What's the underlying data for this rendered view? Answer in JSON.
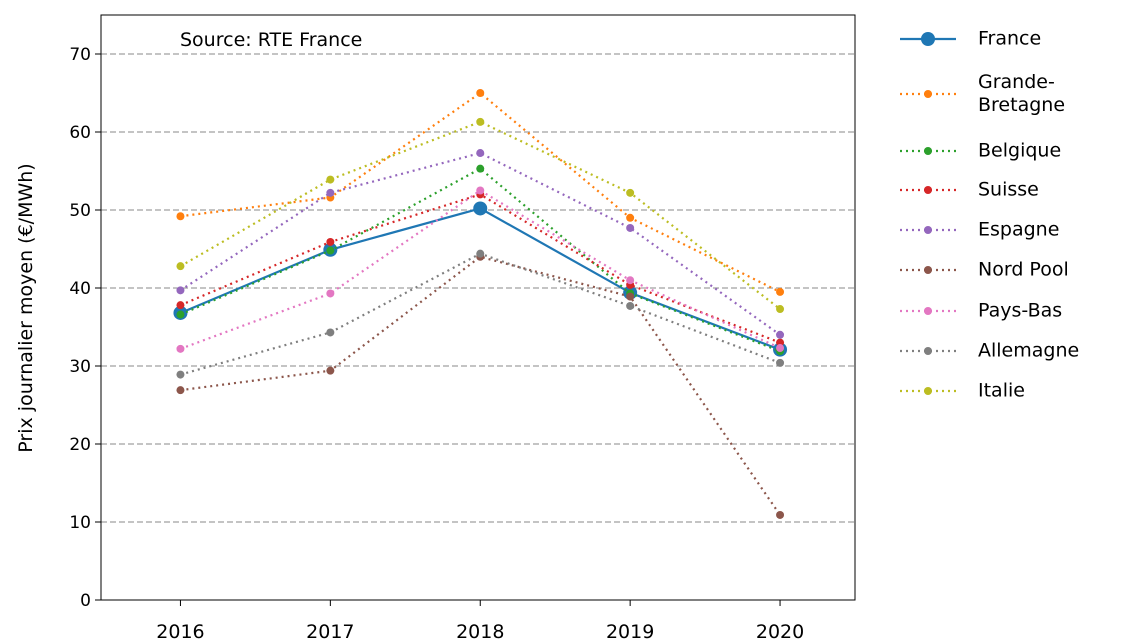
{
  "chart_data": {
    "type": "line",
    "annotation": "Source: RTE France",
    "y_label": "Prix journalier moyen (€/MWh)",
    "x": [
      2016,
      2017,
      2018,
      2019,
      2020
    ],
    "xlim": [
      2015.47,
      2020.5
    ],
    "xticks": [
      2016,
      2017,
      2018,
      2019,
      2020
    ],
    "ylim": [
      0,
      75
    ],
    "yticks": [
      0,
      10,
      20,
      30,
      40,
      50,
      60,
      70
    ],
    "grid": "y",
    "legend": "outside right",
    "series": [
      {
        "name": "France",
        "color": "#1f77b4",
        "line_style": "solid",
        "values": [
          36.8,
          44.9,
          50.2,
          39.4,
          32.1
        ]
      },
      {
        "name": "Grande-\nBretagne",
        "color": "#ff7f0e",
        "line_style": "dotted",
        "values": [
          49.2,
          51.6,
          65.0,
          49.0,
          39.5
        ]
      },
      {
        "name": "Belgique",
        "color": "#2ca02c",
        "line_style": "dotted",
        "values": [
          36.6,
          44.8,
          55.3,
          39.3,
          31.9
        ]
      },
      {
        "name": "Suisse",
        "color": "#d62728",
        "line_style": "dotted",
        "values": [
          37.8,
          45.9,
          52.0,
          40.4,
          33.0
        ]
      },
      {
        "name": "Espagne",
        "color": "#9467bd",
        "line_style": "dotted",
        "values": [
          39.7,
          52.2,
          57.3,
          47.7,
          34.0
        ]
      },
      {
        "name": "Nord Pool",
        "color": "#8c564b",
        "line_style": "dotted",
        "values": [
          26.9,
          29.4,
          44.0,
          38.9,
          10.9
        ]
      },
      {
        "name": "Pays-Bas",
        "color": "#e377c2",
        "line_style": "dotted",
        "values": [
          32.2,
          39.3,
          52.5,
          41.0,
          32.3
        ]
      },
      {
        "name": "Allemagne",
        "color": "#7f7f7f",
        "line_style": "dotted",
        "values": [
          28.9,
          34.3,
          44.4,
          37.7,
          30.4
        ]
      },
      {
        "name": "Italie",
        "color": "#bcbd22",
        "line_style": "dotted",
        "values": [
          42.8,
          53.9,
          61.3,
          52.2,
          37.3
        ]
      }
    ]
  }
}
